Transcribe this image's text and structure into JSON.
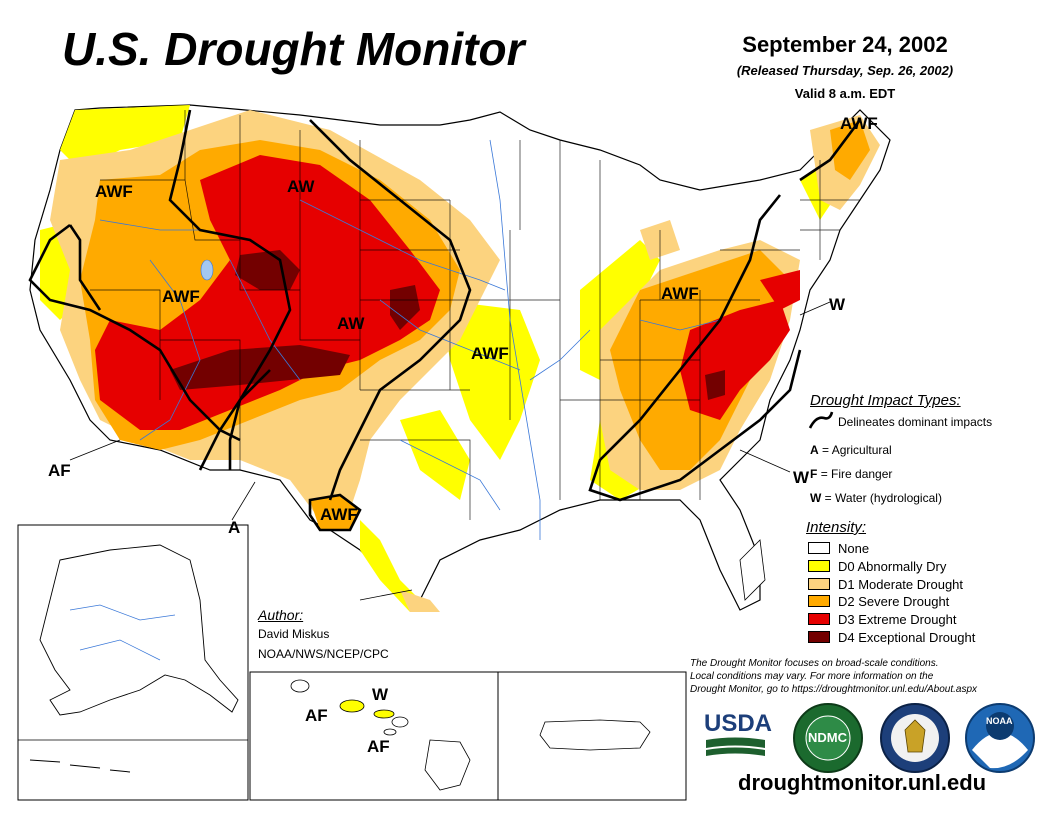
{
  "header": {
    "title": "U.S. Drought Monitor",
    "date": "September 24, 2002",
    "released": "(Released Thursday, Sep. 26, 2002)",
    "valid": "Valid 8 a.m. EDT"
  },
  "map_labels": {
    "awf_northwest": "AWF",
    "aw_north": "AW",
    "awf_great_basin": "AWF",
    "aw_central": "AW",
    "awf_plains": "AWF",
    "af_southwest": "AF",
    "awf_texas": "AWF",
    "a_southwest_border": "A",
    "awf_ohio_valley": "AWF",
    "awf_maine": "AWF",
    "w_midatlantic": "W",
    "w_southeast": "W",
    "w_hawaii": "W",
    "af_hawaii_west": "AF",
    "af_hawaii_big": "AF"
  },
  "impact_legend": {
    "title": "Drought Impact Types:",
    "delineates": "Delineates dominant impacts",
    "agricultural_key": "A",
    "agricultural": "= Agricultural",
    "fire_key": "F",
    "fire": "= Fire danger",
    "water_key": "W",
    "water": "= Water (hydrological)"
  },
  "intensity_legend": {
    "title": "Intensity:",
    "items": [
      {
        "label": "None",
        "color": "#ffffff"
      },
      {
        "label": "D0 Abnormally Dry",
        "color": "#ffff00"
      },
      {
        "label": "D1 Moderate Drought",
        "color": "#fcd37f"
      },
      {
        "label": "D2 Severe Drought",
        "color": "#ffaa00"
      },
      {
        "label": "D3 Extreme Drought",
        "color": "#e60000"
      },
      {
        "label": "D4 Exceptional Drought",
        "color": "#730000"
      }
    ]
  },
  "author": {
    "title": "Author:",
    "name": "David Miskus",
    "org": "NOAA/NWS/NCEP/CPC"
  },
  "disclaimer": {
    "line1": "The Drought Monitor focuses on broad-scale conditions.",
    "line2": "Local conditions may vary. For more information on the",
    "line3": "Drought Monitor, go to https://droughtmonitor.unl.edu/About.aspx"
  },
  "logos": {
    "usda": "USDA",
    "ndmc": "NDMC",
    "noaa": "NOAA"
  },
  "website": "droughtmonitor.unl.edu"
}
